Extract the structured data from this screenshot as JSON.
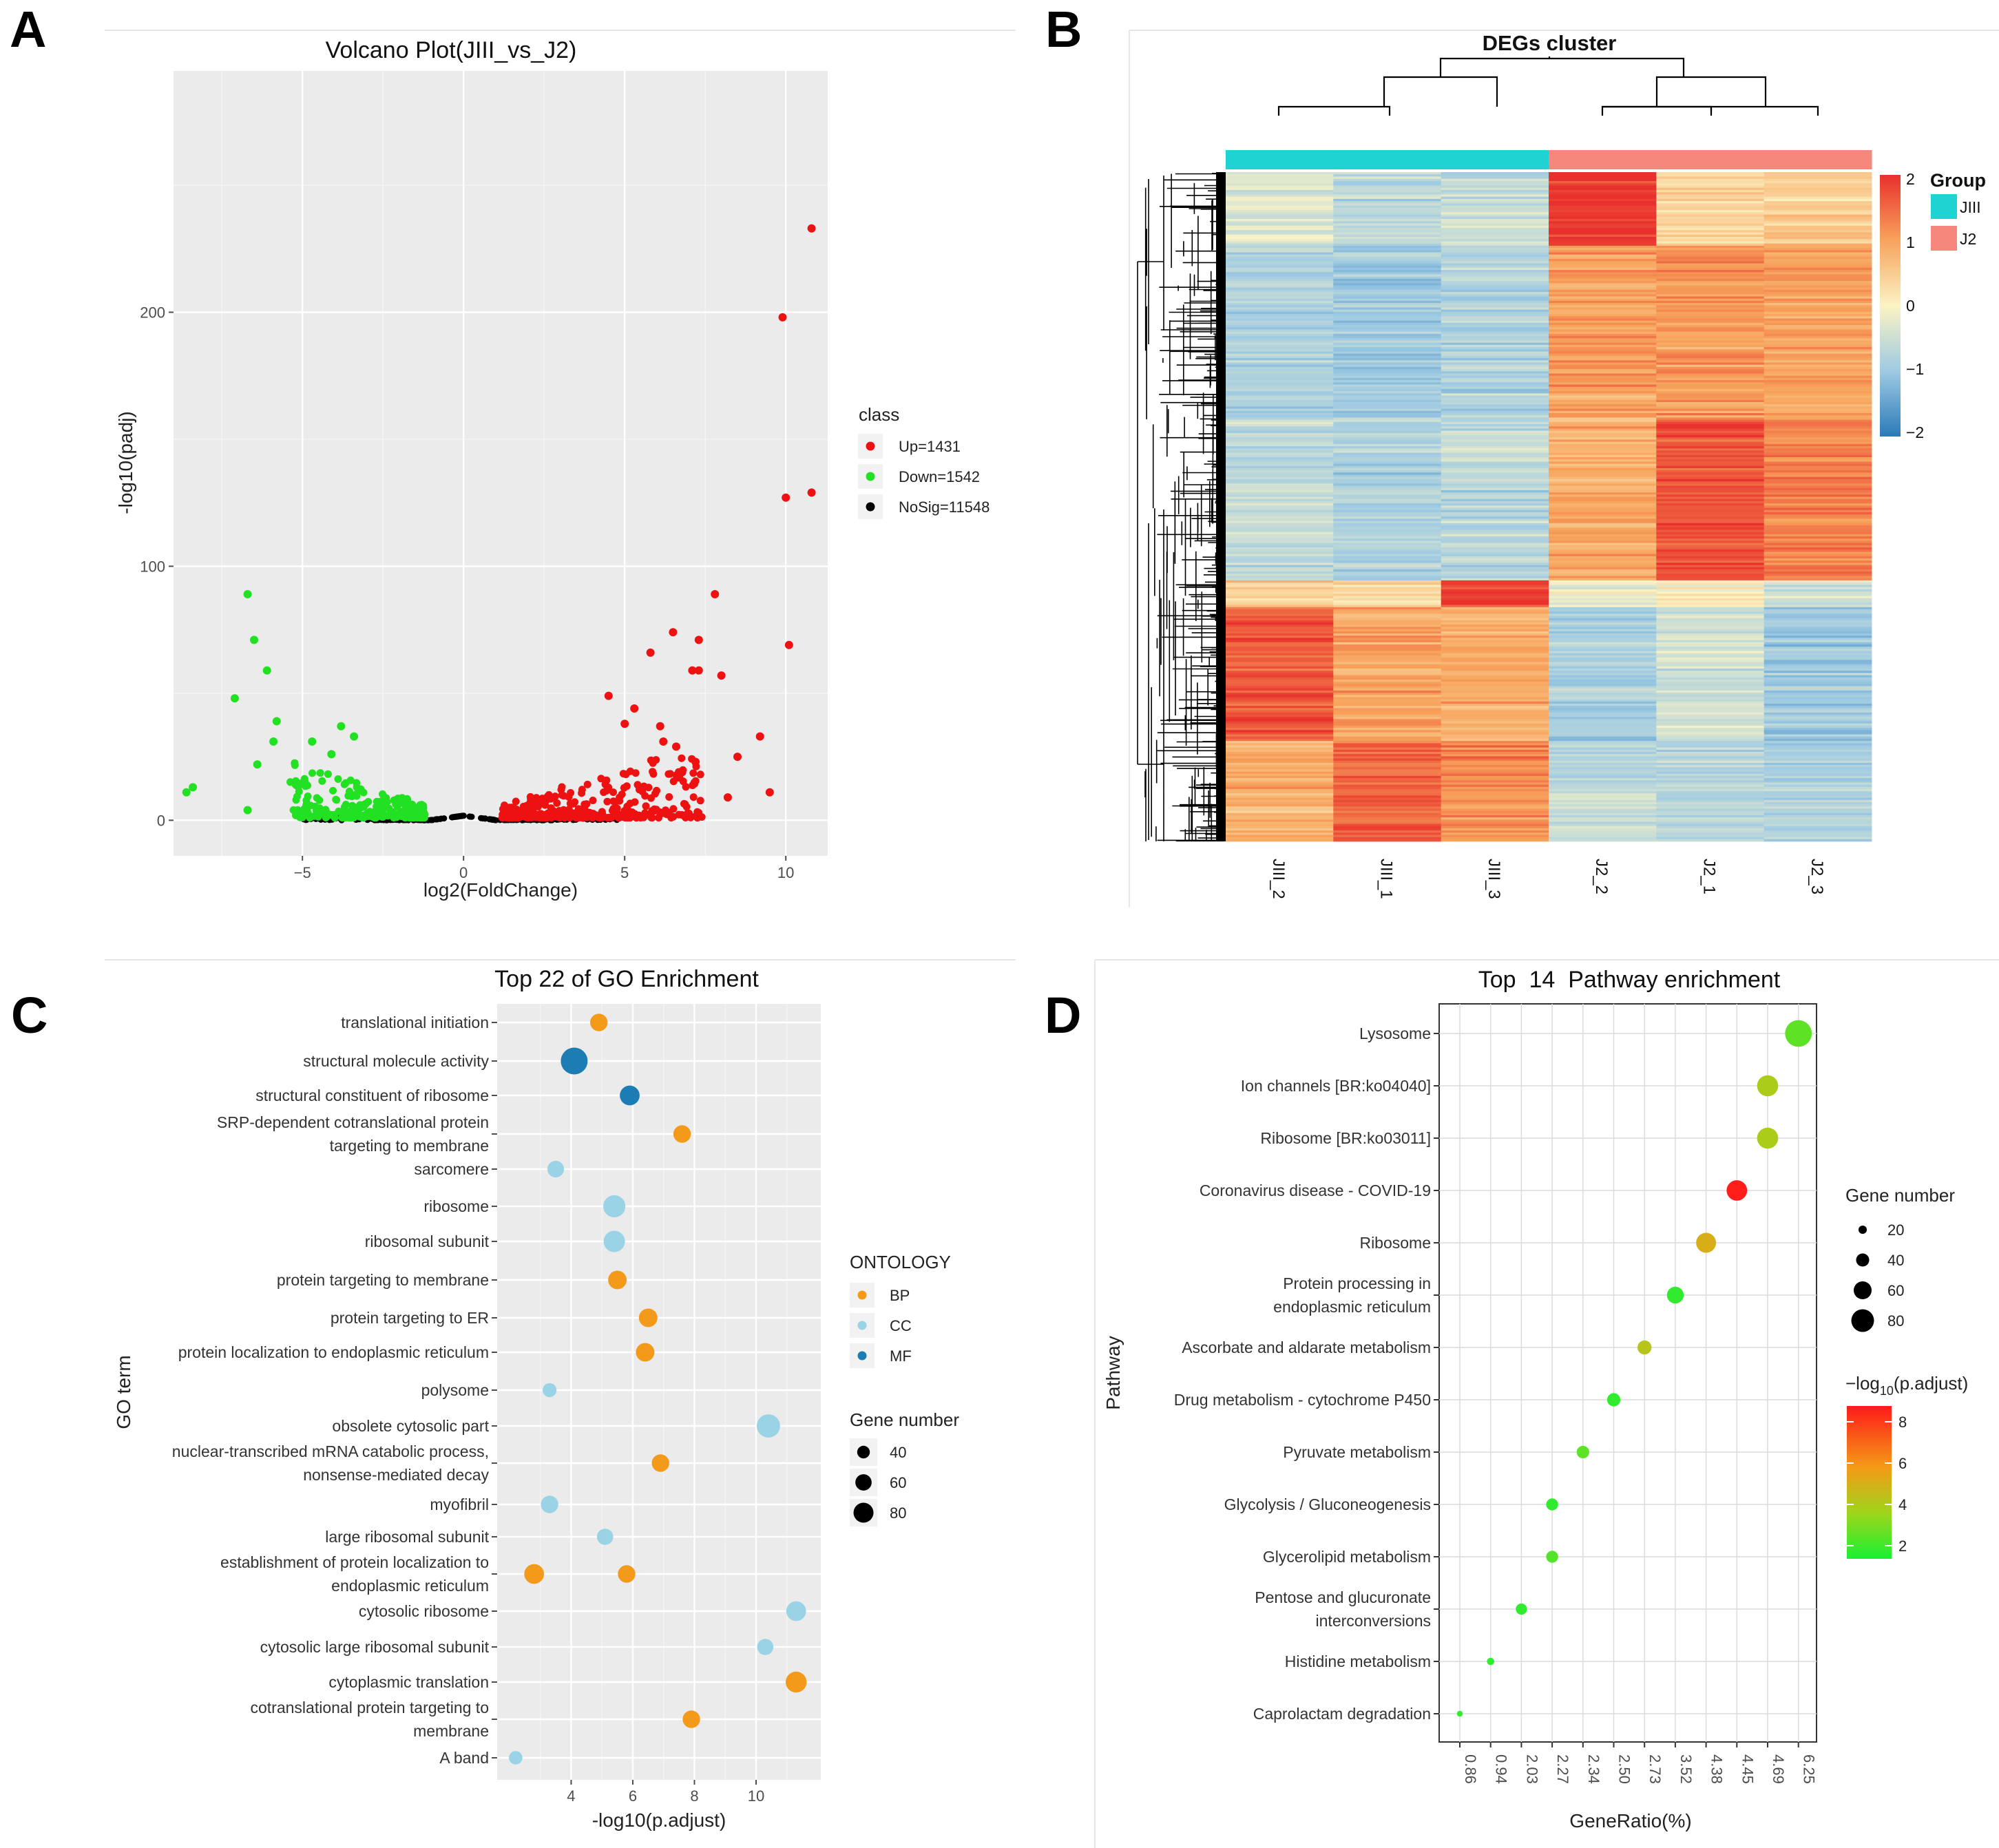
{
  "panels": {
    "A": "A",
    "B": "B",
    "C": "C",
    "D": "D"
  },
  "chart_data": [
    {
      "type": "scatter",
      "panel": "A",
      "title": "Volcano Plot(JIII_vs_J2)",
      "xlabel": "log2(FoldChange)",
      "ylabel": "-log10(padj)",
      "xlim": [
        -9,
        11.3
      ],
      "ylim": [
        -14,
        295
      ],
      "xticks": [
        -5,
        0,
        5,
        10
      ],
      "yticks": [
        0,
        100,
        200
      ],
      "legend_title": "class",
      "classes": [
        {
          "label": "Up=1431",
          "color": "#ee1111"
        },
        {
          "label": "Down=1542",
          "color": "#22e022"
        },
        {
          "label": "NoSig=11548",
          "color": "#000000"
        }
      ],
      "labeled_points": {
        "up": [
          [
            10.8,
            233
          ],
          [
            9.9,
            198
          ],
          [
            10.0,
            127
          ],
          [
            10.8,
            129
          ],
          [
            7.8,
            89
          ],
          [
            10.1,
            69
          ],
          [
            6.5,
            74
          ],
          [
            7.3,
            71
          ],
          [
            5.8,
            66
          ],
          [
            7.1,
            59
          ],
          [
            7.3,
            59
          ],
          [
            8.0,
            57
          ],
          [
            4.5,
            49
          ],
          [
            5.3,
            44
          ],
          [
            5.0,
            38
          ],
          [
            6.1,
            37
          ],
          [
            6.2,
            31
          ],
          [
            6.6,
            29
          ],
          [
            9.2,
            33
          ],
          [
            8.5,
            25
          ],
          [
            7.2,
            23
          ],
          [
            9.5,
            11
          ],
          [
            8.2,
            9
          ]
        ],
        "down": [
          [
            -6.7,
            89
          ],
          [
            -6.5,
            71
          ],
          [
            -6.1,
            59
          ],
          [
            -7.1,
            48
          ],
          [
            -5.8,
            39
          ],
          [
            -3.8,
            37
          ],
          [
            -3.4,
            33
          ],
          [
            -5.9,
            31
          ],
          [
            -4.7,
            31
          ],
          [
            -4.1,
            26
          ],
          [
            -6.4,
            22
          ],
          [
            -8.4,
            13
          ],
          [
            -8.6,
            11
          ],
          [
            -5.2,
            14
          ],
          [
            -6.7,
            4
          ]
        ]
      }
    },
    {
      "type": "heatmap",
      "panel": "B",
      "title": "DEGs cluster",
      "columns": [
        "JIII_2",
        "JIII_1",
        "JIII_3",
        "J2_2",
        "J2_1",
        "J2_3"
      ],
      "column_groups": [
        "JIII",
        "JIII",
        "JIII",
        "J2",
        "J2",
        "J2"
      ],
      "legend_title": "Group",
      "groups": [
        {
          "label": "JIII",
          "color": "#1fd3d3"
        },
        {
          "label": "J2",
          "color": "#f6877d"
        }
      ],
      "colorbar_ticks": [
        "2",
        "1",
        "0",
        "−1",
        "−2"
      ],
      "color_range": [
        -2,
        2
      ],
      "row_blocks": [
        {
          "rows": 0.11,
          "values": [
            -0.4,
            -0.7,
            -0.5,
            1.9,
            0.4,
            0.5
          ]
        },
        {
          "rows": 0.26,
          "values": [
            -0.8,
            -1.0,
            -0.8,
            1.0,
            1.1,
            1.0
          ]
        },
        {
          "rows": 0.24,
          "values": [
            -0.6,
            -0.8,
            -0.7,
            0.9,
            1.7,
            1.3
          ]
        },
        {
          "rows": 0.04,
          "values": [
            0.5,
            0.3,
            1.8,
            -0.2,
            0.1,
            -0.5
          ]
        },
        {
          "rows": 0.2,
          "values": [
            1.7,
            1.0,
            0.9,
            -0.9,
            -0.5,
            -1.0
          ]
        },
        {
          "rows": 0.15,
          "values": [
            0.8,
            1.6,
            1.2,
            -0.6,
            -0.7,
            -0.8
          ]
        }
      ]
    },
    {
      "type": "scatter",
      "panel": "C",
      "title": "Top 22 of GO Enrichment",
      "xlabel": "-log10(p.adjust)",
      "ylabel": "GO term",
      "xlim": [
        1.6,
        12.1
      ],
      "xticks": [
        4,
        6,
        8,
        10
      ],
      "categories": [
        "translational initiation",
        "structural molecule activity",
        "structural constituent of ribosome",
        "SRP-dependent cotranslational protein\ntargeting to membrane",
        "sarcomere",
        "ribosome",
        "ribosomal subunit",
        "protein targeting to membrane",
        "protein targeting to ER",
        "protein localization to endoplasmic reticulum",
        "polysome",
        "obsolete cytosolic part",
        "nuclear-transcribed mRNA catabolic process,\nnonsense-mediated decay",
        "myofibril",
        "large ribosomal subunit",
        "establishment of protein localization to\nendoplasmic reticulum",
        "cytosolic ribosome",
        "cytosolic large ribosomal subunit",
        "cytoplasmic translation",
        "cotranslational protein targeting to\nmembrane",
        "A band"
      ],
      "points": [
        {
          "cat": 0,
          "x": 4.9,
          "ont": "BP",
          "n": 45
        },
        {
          "cat": 1,
          "x": 4.1,
          "ont": "MF",
          "n": 85
        },
        {
          "cat": 2,
          "x": 5.9,
          "ont": "MF",
          "n": 55
        },
        {
          "cat": 3,
          "x": 7.6,
          "ont": "BP",
          "n": 45
        },
        {
          "cat": 4,
          "x": 3.5,
          "ont": "CC",
          "n": 42
        },
        {
          "cat": 5,
          "x": 5.4,
          "ont": "CC",
          "n": 65
        },
        {
          "cat": 6,
          "x": 5.4,
          "ont": "CC",
          "n": 62
        },
        {
          "cat": 7,
          "x": 5.5,
          "ont": "BP",
          "n": 50
        },
        {
          "cat": 8,
          "x": 6.5,
          "ont": "BP",
          "n": 50
        },
        {
          "cat": 9,
          "x": 6.4,
          "ont": "BP",
          "n": 50
        },
        {
          "cat": 10,
          "x": 3.3,
          "ont": "CC",
          "n": 30
        },
        {
          "cat": 11,
          "x": 10.4,
          "ont": "CC",
          "n": 70
        },
        {
          "cat": 12,
          "x": 6.9,
          "ont": "BP",
          "n": 45
        },
        {
          "cat": 13,
          "x": 3.3,
          "ont": "CC",
          "n": 45
        },
        {
          "cat": 14,
          "x": 5.1,
          "ont": "CC",
          "n": 40
        },
        {
          "cat": 15,
          "x": 2.8,
          "ont": "BP",
          "n": 55
        },
        {
          "cat": 15,
          "x": 5.8,
          "ont": "BP",
          "n": 45
        },
        {
          "cat": 16,
          "x": 11.3,
          "ont": "CC",
          "n": 55
        },
        {
          "cat": 17,
          "x": 10.3,
          "ont": "CC",
          "n": 40
        },
        {
          "cat": 18,
          "x": 11.3,
          "ont": "BP",
          "n": 60
        },
        {
          "cat": 19,
          "x": 7.9,
          "ont": "BP",
          "n": 45
        },
        {
          "cat": 20,
          "x": 2.2,
          "ont": "CC",
          "n": 28
        }
      ],
      "ontology_title": "ONTOLOGY",
      "ontologies": [
        {
          "label": "BP",
          "color": "#f39a1a"
        },
        {
          "label": "CC",
          "color": "#9ad3e6"
        },
        {
          "label": "MF",
          "color": "#1b7db4"
        }
      ],
      "size_title": "Gene number",
      "size_legend": [
        40,
        60,
        80
      ]
    },
    {
      "type": "scatter",
      "panel": "D",
      "title": "Top  14  Pathway enrichment",
      "xlabel": "GeneRatio(%)",
      "ylabel": "Pathway",
      "x_categories": [
        "0.86",
        "0.94",
        "2.03",
        "2.27",
        "2.34",
        "2.50",
        "2.73",
        "3.52",
        "4.38",
        "4.45",
        "4.69",
        "6.25"
      ],
      "categories": [
        "Lysosome",
        "Ion channels [BR:ko04040]",
        "Ribosome [BR:ko03011]",
        "Coronavirus disease - COVID-19",
        "Ribosome",
        "Protein processing in\nendoplasmic reticulum",
        "Ascorbate and aldarate metabolism",
        "Drug metabolism - cytochrome P450",
        "Pyruvate metabolism",
        "Glycolysis / Gluconeogenesis",
        "Glycerolipid metabolism",
        "Pentose and glucuronate\ninterconversions",
        "Histidine metabolism",
        "Caprolactam degradation"
      ],
      "points": [
        {
          "cat": 0,
          "xi": 11,
          "n": 80,
          "p": 2.4
        },
        {
          "cat": 1,
          "xi": 10,
          "n": 60,
          "p": 3.9
        },
        {
          "cat": 2,
          "xi": 10,
          "n": 60,
          "p": 3.9
        },
        {
          "cat": 3,
          "xi": 9,
          "n": 58,
          "p": 8.9
        },
        {
          "cat": 4,
          "xi": 8,
          "n": 56,
          "p": 5.1
        },
        {
          "cat": 5,
          "xi": 7,
          "n": 45,
          "p": 1.6
        },
        {
          "cat": 6,
          "xi": 6,
          "n": 35,
          "p": 4.2
        },
        {
          "cat": 7,
          "xi": 5,
          "n": 32,
          "p": 1.6
        },
        {
          "cat": 8,
          "xi": 4,
          "n": 30,
          "p": 2.4
        },
        {
          "cat": 9,
          "xi": 3,
          "n": 28,
          "p": 1.6
        },
        {
          "cat": 10,
          "xi": 3,
          "n": 28,
          "p": 2.2
        },
        {
          "cat": 11,
          "xi": 2,
          "n": 25,
          "p": 1.6
        },
        {
          "cat": 12,
          "xi": 1,
          "n": 11,
          "p": 1.6
        },
        {
          "cat": 13,
          "xi": 0,
          "n": 6,
          "p": 1.6
        }
      ],
      "size_title": "Gene number",
      "size_legend": [
        20,
        40,
        60,
        80
      ],
      "color_title": "−log",
      "color_title_sub": "10",
      "color_title_end": "(p.adjust)",
      "color_ticks": [
        8,
        6,
        4,
        2
      ]
    }
  ]
}
